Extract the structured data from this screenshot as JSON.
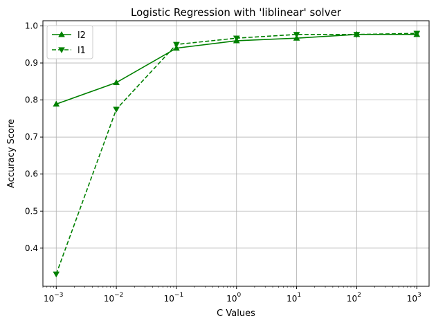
{
  "chart_data": {
    "type": "line",
    "title": "Logistic Regression with 'liblinear' solver",
    "xlabel": "C Values",
    "ylabel": "Accuracy Score",
    "x_scale": "log",
    "x": [
      0.001,
      0.01,
      0.1,
      1,
      10,
      100,
      1000
    ],
    "x_tick_labels": [
      {
        "base": "10",
        "exp": "−3"
      },
      {
        "base": "10",
        "exp": "−2"
      },
      {
        "base": "10",
        "exp": "−1"
      },
      {
        "base": "10",
        "exp": "0"
      },
      {
        "base": "10",
        "exp": "1"
      },
      {
        "base": "10",
        "exp": "2"
      },
      {
        "base": "10",
        "exp": "3"
      }
    ],
    "y_ticks": [
      0.4,
      0.5,
      0.6,
      0.7,
      0.8,
      0.9,
      1.0
    ],
    "y_tick_labels": [
      "0.4",
      "0.5",
      "0.6",
      "0.7",
      "0.8",
      "0.9",
      "1.0"
    ],
    "xlim": [
      0.0006,
      1600
    ],
    "ylim": [
      0.297,
      1.014
    ],
    "grid": true,
    "legend_position": "top-left",
    "series": [
      {
        "name": "l2",
        "color": "#008000",
        "marker": "triangle-up",
        "linestyle": "solid",
        "values": [
          0.789,
          0.847,
          0.94,
          0.96,
          0.967,
          0.977,
          0.977
        ]
      },
      {
        "name": "l1",
        "color": "#008000",
        "marker": "triangle-down",
        "linestyle": "dashed",
        "values": [
          0.33,
          0.775,
          0.95,
          0.967,
          0.977,
          0.977,
          0.98
        ]
      }
    ]
  }
}
